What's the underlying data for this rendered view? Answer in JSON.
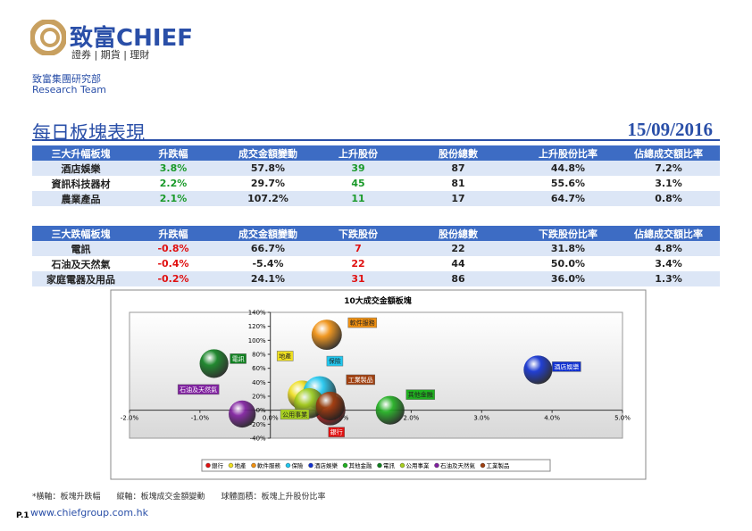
{
  "header": {
    "brand": "致富CHIEF",
    "slogan": "證券 | 期貨 | 理財",
    "dept": "致富集團研究部",
    "team": "Research Team"
  },
  "title": "每日板塊表現",
  "date": "15/09/2016",
  "tables": [
    {
      "header": [
        "三大升幅板塊",
        "升跌幅",
        "成交金額變動",
        "上升股份",
        "股份總數",
        "上升股份比率",
        "佔總成交額比率"
      ],
      "rows": [
        [
          "酒店娛樂",
          "3.8%",
          "57.8%",
          "39",
          "87",
          "44.8%",
          "7.2%"
        ],
        [
          "資訊科技器材",
          "2.2%",
          "29.7%",
          "45",
          "81",
          "55.6%",
          "3.1%"
        ],
        [
          "農業產品",
          "2.1%",
          "107.2%",
          "11",
          "17",
          "64.7%",
          "0.8%"
        ]
      ]
    },
    {
      "header": [
        "三大跌幅板塊",
        "升跌幅",
        "成交金額變動",
        "下跌股份",
        "股份總數",
        "下跌股份比率",
        "佔總成交額比率"
      ],
      "rows": [
        [
          "電訊",
          "-0.8%",
          "66.7%",
          "7",
          "22",
          "31.8%",
          "4.8%"
        ],
        [
          "石油及天然氣",
          "-0.4%",
          "-5.4%",
          "22",
          "44",
          "50.0%",
          "3.4%"
        ],
        [
          "家庭電器及用品",
          "-0.2%",
          "24.1%",
          "31",
          "86",
          "36.0%",
          "1.3%"
        ]
      ]
    }
  ],
  "chart_data": {
    "type": "bubble",
    "title": "10大成交金額板塊",
    "xlim": [
      -2,
      5
    ],
    "xticks": [
      {
        "value": -2,
        "label": "-2.0%"
      },
      {
        "value": -1,
        "label": "-1.0%"
      },
      {
        "value": 0,
        "label": "0.0%"
      },
      {
        "value": 1,
        "label": "1.0%"
      },
      {
        "value": 2,
        "label": "2.0%"
      },
      {
        "value": 3,
        "label": "3.0%"
      },
      {
        "value": 4,
        "label": "4.0%"
      },
      {
        "value": 5,
        "label": "5.0%"
      }
    ],
    "ylim": [
      -40,
      140
    ],
    "yticks": [
      {
        "value": -40,
        "label": "-40%"
      },
      {
        "value": -20,
        "label": "-20%"
      },
      {
        "value": 0,
        "label": "0%"
      },
      {
        "value": 20,
        "label": "20%"
      },
      {
        "value": 40,
        "label": "40%"
      },
      {
        "value": 60,
        "label": "60%"
      },
      {
        "value": 80,
        "label": "80%"
      },
      {
        "value": 100,
        "label": "100%"
      },
      {
        "value": 120,
        "label": "120%"
      },
      {
        "value": 140,
        "label": "140%"
      }
    ],
    "series": [
      {
        "name": "銀行",
        "color": "#e01010",
        "x": [
          0.85
        ],
        "values": [
          0
        ],
        "sizes": [
          50
        ]
      },
      {
        "name": "地產",
        "color": "#f0e020",
        "x": [
          0.45
        ],
        "values": [
          22
        ],
        "sizes": [
          45
        ]
      },
      {
        "name": "軟件服務",
        "color": "#f09010",
        "x": [
          0.8
        ],
        "values": [
          108
        ],
        "sizes": [
          50
        ]
      },
      {
        "name": "保險",
        "color": "#20c8f0",
        "x": [
          0.7
        ],
        "values": [
          25
        ],
        "sizes": [
          60
        ]
      },
      {
        "name": "酒店娛樂",
        "color": "#1030d0",
        "x": [
          3.8
        ],
        "values": [
          57.8
        ],
        "sizes": [
          44.8
        ]
      },
      {
        "name": "其他金融",
        "color": "#20b020",
        "x": [
          1.7
        ],
        "values": [
          0
        ],
        "sizes": [
          45
        ]
      },
      {
        "name": "電訊",
        "color": "#108020",
        "x": [
          -0.8
        ],
        "values": [
          66.7
        ],
        "sizes": [
          45
        ]
      },
      {
        "name": "公用事業",
        "color": "#a8d020",
        "x": [
          0.55
        ],
        "values": [
          10
        ],
        "sizes": [
          50
        ]
      },
      {
        "name": "石油及天然氣",
        "color": "#8020a0",
        "x": [
          -0.4
        ],
        "values": [
          -5.4
        ],
        "sizes": [
          40
        ]
      },
      {
        "name": "工業製品",
        "color": "#a04010",
        "x": [
          0.85
        ],
        "values": [
          6
        ],
        "sizes": [
          45
        ]
      }
    ]
  },
  "footnote": "*橫軸：板塊升跌幅　　縱軸：板塊成交金額變動　　球體面積：板塊上升股份比率",
  "footer": {
    "page": "P.1",
    "url": "www.chiefgroup.com.hk"
  }
}
